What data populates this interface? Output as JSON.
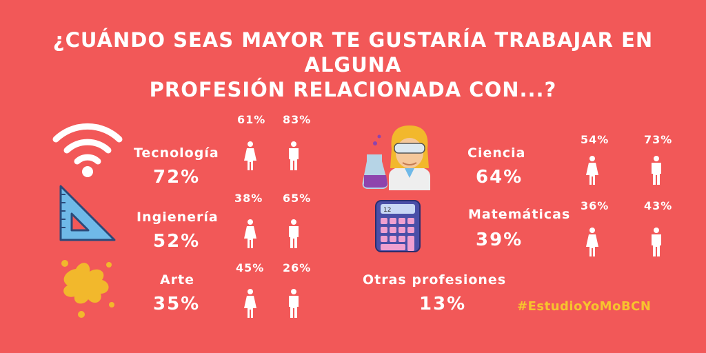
{
  "title_lines": [
    "¿CUÁNDO SEAS MAYOR TE GUSTARÍA TRABAJAR EN",
    "ALGUNA",
    "PROFESIÓN RELACIONADA CON...?"
  ],
  "hashtag": "#EstudioYoMoBCN",
  "colors": {
    "background": "#f25858",
    "text": "#ffffff",
    "hashtag": "#f7c42d"
  },
  "chart_data": {
    "type": "table",
    "title": "¿CUÁNDO SEAS MAYOR TE GUSTARÍA TRABAJAR EN ALGUNA PROFESIÓN RELACIONADA CON...?",
    "categories": [
      {
        "label": "Tecnología",
        "total": "72%",
        "female": "61%",
        "male": "83%",
        "icon": "wifi-icon"
      },
      {
        "label": "Ingienería",
        "total": "52%",
        "female": "38%",
        "male": "65%",
        "icon": "set-square-icon"
      },
      {
        "label": "Arte",
        "total": "35%",
        "female": "45%",
        "male": "26%",
        "icon": "paint-splash-icon"
      },
      {
        "label": "Ciencia",
        "total": "64%",
        "female": "54%",
        "male": "73%",
        "icon": "scientist-icon"
      },
      {
        "label": "Matemáticas",
        "total": "39%",
        "female": "36%",
        "male": "43%",
        "icon": "calculator-icon"
      },
      {
        "label": "Otras profesiones",
        "total": "13%",
        "icon": ""
      }
    ]
  }
}
